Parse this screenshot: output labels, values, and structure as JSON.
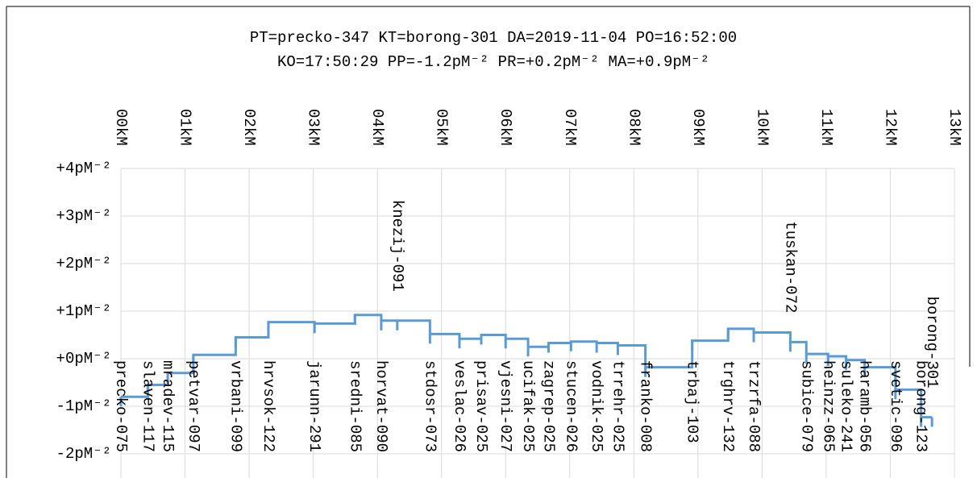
{
  "chart_data": {
    "type": "step",
    "title": "PT=precko-347 KT=borong-301 DA=2019-11-04 PO=16:52:00",
    "subtitle": "KO=17:50:29 PP=-1.2pM⁻² PR=+0.2pM⁻² MA=+0.9pM⁻²",
    "labels": [
      "precko-075",
      "slaven-117",
      "mradev-115",
      "petvar-097",
      "vrbani-099",
      "hrvsok-122",
      "jarunn-291",
      "sredni-085",
      "horvat-090",
      "knezij-091",
      "stdosr-073",
      "veslac-026",
      "prisav-025",
      "vjesni-027",
      "ucifak-025",
      "zagrep-025",
      "stucen-026",
      "vodnik-025",
      "trrehr-025",
      "franko-008",
      "trbaj-103",
      "trghrv-132",
      "trzrfa-088",
      "tuskan-072",
      "subice-079",
      "heinzz-065",
      "suleko-241",
      "haramb-056",
      "svetic-096",
      "borong-123",
      "borong-301"
    ],
    "x": [
      0,
      0.42,
      0.73,
      1.13,
      1.79,
      2.3,
      3.02,
      3.65,
      4.06,
      4.31,
      4.82,
      5.28,
      5.62,
      6.0,
      6.35,
      6.67,
      7.02,
      7.42,
      7.75,
      8.18,
      8.91,
      9.47,
      9.87,
      10.44,
      10.69,
      11.03,
      11.31,
      11.6,
      12.08,
      12.48,
      12.65
    ],
    "values": [
      -0.8,
      -0.55,
      -0.3,
      0.08,
      0.45,
      0.77,
      0.74,
      0.92,
      0.8,
      0.8,
      0.52,
      0.42,
      0.5,
      0.42,
      0.25,
      0.33,
      0.36,
      0.33,
      0.28,
      -0.18,
      0.38,
      0.63,
      0.55,
      0.35,
      0.1,
      0.05,
      -0.03,
      -0.18,
      -0.65,
      -1.23,
      -1.23
    ],
    "color": "#5b9bd5",
    "xlim": [
      0,
      13
    ],
    "xticks": [
      {
        "value": 0,
        "label": "00kM"
      },
      {
        "value": 1,
        "label": "01kM"
      },
      {
        "value": 2,
        "label": "02kM"
      },
      {
        "value": 3,
        "label": "03kM"
      },
      {
        "value": 4,
        "label": "04kM"
      },
      {
        "value": 5,
        "label": "05kM"
      },
      {
        "value": 6,
        "label": "06kM"
      },
      {
        "value": 7,
        "label": "07kM"
      },
      {
        "value": 8,
        "label": "08kM"
      },
      {
        "value": 9,
        "label": "09kM"
      },
      {
        "value": 10,
        "label": "10kM"
      },
      {
        "value": 11,
        "label": "11kM"
      },
      {
        "value": 12,
        "label": "12kM"
      },
      {
        "value": 13,
        "label": "13kM"
      }
    ],
    "ylim": [
      -2,
      4
    ],
    "yticks": [
      {
        "value": 4,
        "label": "+4pM⁻²"
      },
      {
        "value": 3,
        "label": "+3pM⁻²"
      },
      {
        "value": 2,
        "label": "+2pM⁻²"
      },
      {
        "value": 1,
        "label": "+1pM⁻²"
      },
      {
        "value": 0,
        "label": "+0pM⁻²"
      },
      {
        "value": -1,
        "label": "-1pM⁻²"
      },
      {
        "value": -2,
        "label": "-2pM⁻²"
      }
    ],
    "grid": true
  }
}
